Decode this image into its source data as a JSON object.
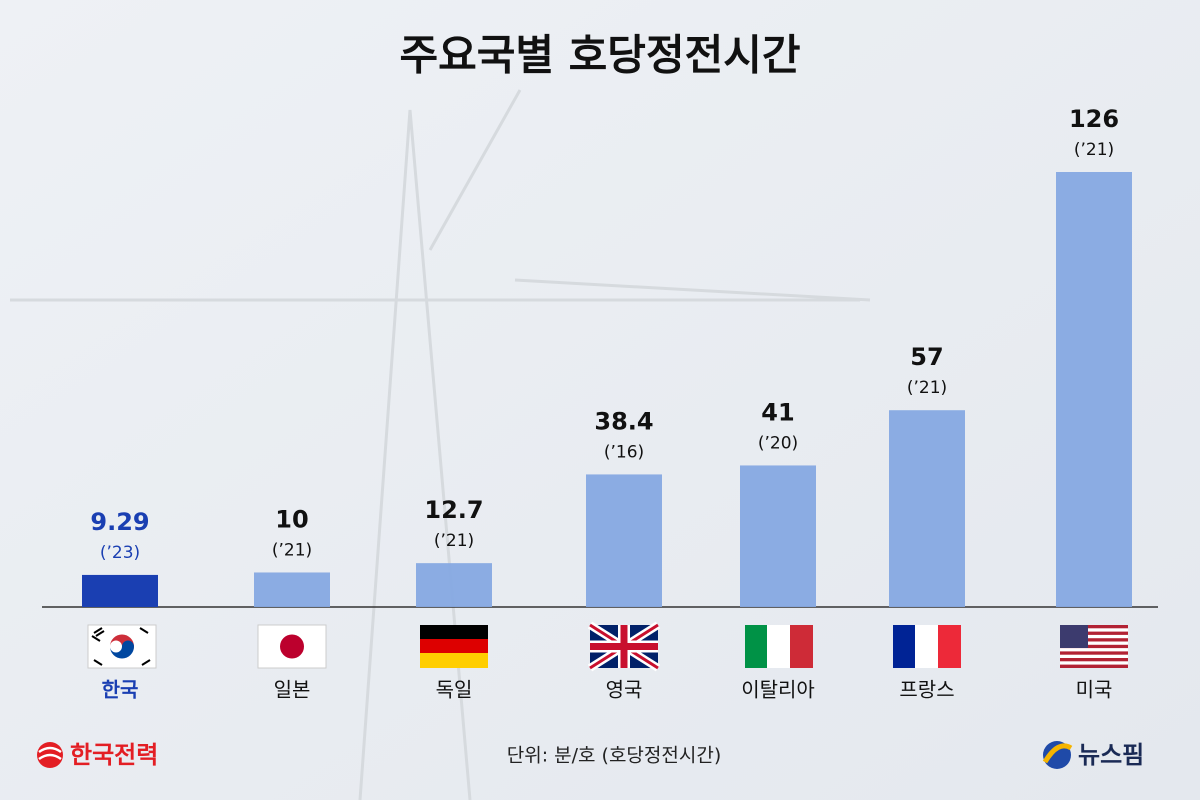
{
  "chart_data": {
    "type": "bar",
    "title": "주요국별 호당정전시간",
    "categories": [
      "한국",
      "일본",
      "독일",
      "영국",
      "이탈리아",
      "프랑스",
      "미국"
    ],
    "values": [
      9.29,
      10,
      12.7,
      38.4,
      41,
      57,
      126
    ],
    "years": [
      "(’23)",
      "(’21)",
      "(’21)",
      "(’16)",
      "(’20)",
      "(’21)",
      "(’21)"
    ],
    "colors": [
      "#1a3fb2",
      "#86a9e2",
      "#86a9e2",
      "#86a9e2",
      "#86a9e2",
      "#86a9e2",
      "#86a9e2"
    ],
    "label_colors": [
      "#1a3fb2",
      "#111111",
      "#111111",
      "#111111",
      "#111111",
      "#111111",
      "#111111"
    ],
    "unit_note": "단위: 분/호 (호당정전시간)",
    "source_logo": "한국전력",
    "publisher_logo": "뉴스핌"
  }
}
